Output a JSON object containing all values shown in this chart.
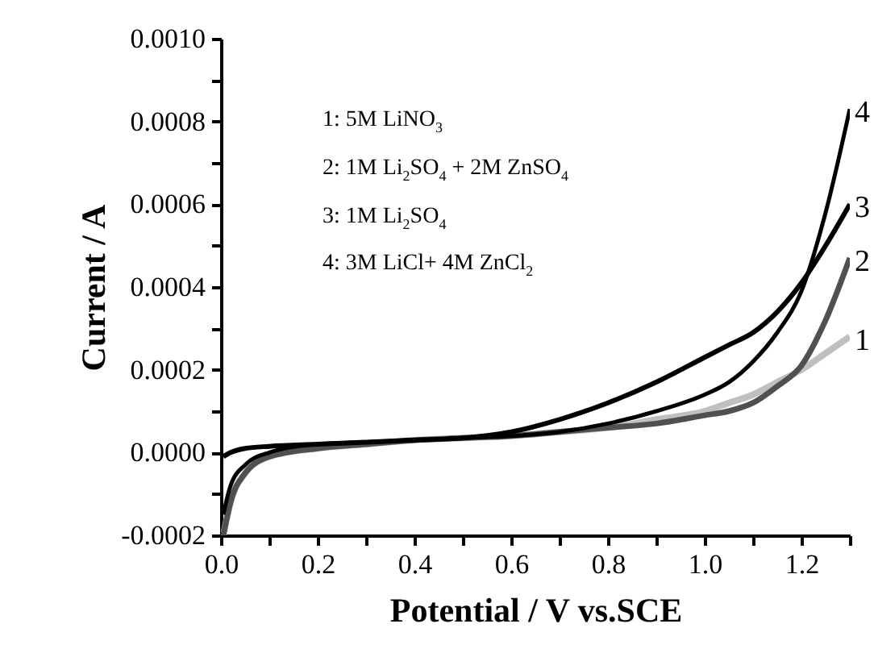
{
  "chart_data": {
    "type": "line",
    "xlabel": "Potential / V vs.SCE",
    "ylabel": "Current / A",
    "x": [
      0.005,
      0.02,
      0.05,
      0.1,
      0.2,
      0.3,
      0.4,
      0.5,
      0.6,
      0.7,
      0.8,
      0.9,
      1.0,
      1.05,
      1.1,
      1.15,
      1.2,
      1.25,
      1.3
    ],
    "series": [
      {
        "name": "1",
        "color": "#c0c0c0",
        "values": [
          -0.0002,
          -0.00012,
          -5e-05,
          -1e-05,
          1e-05,
          2e-05,
          3e-05,
          3.5e-05,
          4e-05,
          5e-05,
          6e-05,
          8e-05,
          0.0001,
          0.00012,
          0.00014,
          0.00017,
          0.0002,
          0.00024,
          0.00028
        ]
      },
      {
        "name": "2",
        "color": "#505050",
        "values": [
          -0.0002,
          -0.00012,
          -5e-05,
          -1e-05,
          1e-05,
          2e-05,
          3e-05,
          3.5e-05,
          4e-05,
          5e-05,
          6e-05,
          7e-05,
          9e-05,
          0.0001,
          0.00012,
          0.00016,
          0.00021,
          0.00032,
          0.00047
        ]
      },
      {
        "name": "3",
        "color": "#000000",
        "values": [
          -1e-05,
          0.0,
          1e-05,
          1.5e-05,
          2e-05,
          2.5e-05,
          3e-05,
          3.5e-05,
          5e-05,
          8e-05,
          0.00012,
          0.00017,
          0.00023,
          0.00026,
          0.00029,
          0.00034,
          0.00041,
          0.0005,
          0.0006
        ]
      },
      {
        "name": "4",
        "color": "#000000",
        "values": [
          -0.00015,
          -8e-05,
          -3e-05,
          0.0,
          2e-05,
          2.5e-05,
          3e-05,
          3.5e-05,
          4e-05,
          5e-05,
          7e-05,
          0.0001,
          0.00014,
          0.00017,
          0.00022,
          0.00029,
          0.00039,
          0.00058,
          0.00083
        ]
      }
    ],
    "xlim": [
      0,
      1.3
    ],
    "xticks": [
      {
        "value": 0,
        "label": "0.0"
      },
      {
        "value": 0.1,
        "label": null
      },
      {
        "value": 0.2,
        "label": "0.2"
      },
      {
        "value": 0.3,
        "label": null
      },
      {
        "value": 0.4,
        "label": "0.4"
      },
      {
        "value": 0.5,
        "label": null
      },
      {
        "value": 0.6,
        "label": "0.6"
      },
      {
        "value": 0.7,
        "label": null
      },
      {
        "value": 0.8,
        "label": "0.8"
      },
      {
        "value": 0.9,
        "label": null
      },
      {
        "value": 1.0,
        "label": "1.0"
      },
      {
        "value": 1.1,
        "label": null
      },
      {
        "value": 1.2,
        "label": "1.2"
      },
      {
        "value": 1.3,
        "label": null
      }
    ],
    "ylim": [
      -0.0002,
      0.001
    ],
    "yticks": [
      {
        "value": -0.0002,
        "label": "-0.0002"
      },
      {
        "value": -0.0001,
        "label": null
      },
      {
        "value": 0,
        "label": "0.0000"
      },
      {
        "value": 0.0001,
        "label": null
      },
      {
        "value": 0.0002,
        "label": "0.0002"
      },
      {
        "value": 0.0003,
        "label": null
      },
      {
        "value": 0.0004,
        "label": "0.0004"
      },
      {
        "value": 0.0005,
        "label": null
      },
      {
        "value": 0.0006,
        "label": "0.0006"
      },
      {
        "value": 0.0007,
        "label": null
      },
      {
        "value": 0.0008,
        "label": "0.0008"
      },
      {
        "value": 0.0009,
        "label": null
      },
      {
        "value": 0.001,
        "label": "0.0010"
      }
    ],
    "annotations": [
      "1: 5M LiNO$_{3}$",
      "2: 1M Li$_{2}$SO$_{4}$ + 2M ZnSO$_{4}$",
      "3: 1M Li$_{2}$SO$_{4}$",
      "4: 3M LiCl+ 4M ZnCl$_{2}$"
    ],
    "grid": false,
    "legend": false
  }
}
